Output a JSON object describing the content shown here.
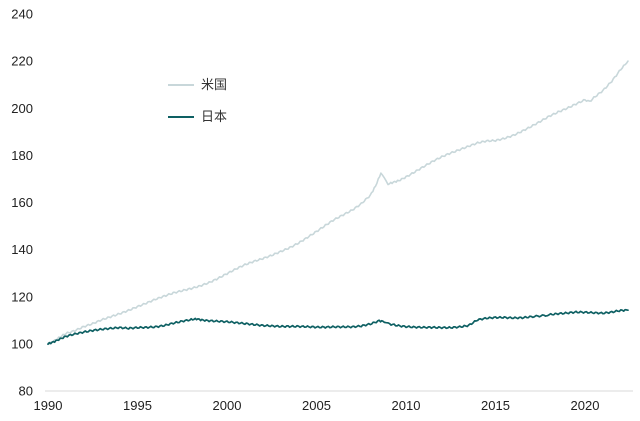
{
  "chart_data": {
    "type": "line",
    "description_visible_text_only": "",
    "x_axis": {
      "range": [
        1990,
        2022.6
      ],
      "ticks": [
        1990,
        1995,
        2000,
        2005,
        2010,
        2015,
        2020
      ]
    },
    "y_axis": {
      "range": [
        80,
        240
      ],
      "ticks": [
        80,
        100,
        120,
        140,
        160,
        180,
        200,
        220,
        240
      ]
    },
    "grid": false,
    "legend_position": "upper-left-inside",
    "legend": [
      {
        "label": "米国",
        "color": "#c8d7da"
      },
      {
        "label": "日本",
        "color": "#0e6063"
      }
    ],
    "series": [
      {
        "id": "us",
        "name": "米国",
        "color": "#c8d7da",
        "stroke_width": 1.6,
        "points": [
          [
            1990.0,
            100
          ],
          [
            1990.3,
            101
          ],
          [
            1990.6,
            102.6
          ],
          [
            1991.0,
            104.4
          ],
          [
            1991.5,
            105.6
          ],
          [
            1992.0,
            107.3
          ],
          [
            1992.5,
            108.6
          ],
          [
            1993.0,
            110.2
          ],
          [
            1993.5,
            111.5
          ],
          [
            1994.0,
            112.8
          ],
          [
            1994.5,
            114.2
          ],
          [
            1995.0,
            115.8
          ],
          [
            1995.5,
            117.3
          ],
          [
            1996.0,
            118.9
          ],
          [
            1996.5,
            120.3
          ],
          [
            1997.0,
            121.6
          ],
          [
            1997.5,
            122.6
          ],
          [
            1998.0,
            123.5
          ],
          [
            1998.5,
            124.6
          ],
          [
            1999.0,
            126.0
          ],
          [
            1999.5,
            127.8
          ],
          [
            2000.0,
            129.8
          ],
          [
            2000.5,
            131.8
          ],
          [
            2001.0,
            133.6
          ],
          [
            2001.5,
            135.0
          ],
          [
            2002.0,
            136.2
          ],
          [
            2002.5,
            137.6
          ],
          [
            2003.0,
            139.2
          ],
          [
            2003.5,
            140.8
          ],
          [
            2004.0,
            142.8
          ],
          [
            2004.5,
            145.2
          ],
          [
            2005.0,
            147.7
          ],
          [
            2005.5,
            150.3
          ],
          [
            2006.0,
            152.8
          ],
          [
            2006.5,
            154.8
          ],
          [
            2007.0,
            156.8
          ],
          [
            2007.5,
            159.5
          ],
          [
            2008.0,
            163.0
          ],
          [
            2008.3,
            167.0
          ],
          [
            2008.6,
            172.5
          ],
          [
            2008.8,
            170.0
          ],
          [
            2009.0,
            167.8
          ],
          [
            2009.3,
            168.6
          ],
          [
            2009.6,
            169.3
          ],
          [
            2010.0,
            170.8
          ],
          [
            2010.5,
            173.0
          ],
          [
            2011.0,
            175.3
          ],
          [
            2011.5,
            177.5
          ],
          [
            2012.0,
            179.4
          ],
          [
            2012.5,
            181.0
          ],
          [
            2013.0,
            182.4
          ],
          [
            2013.5,
            183.9
          ],
          [
            2014.0,
            185.3
          ],
          [
            2014.5,
            186.1
          ],
          [
            2015.0,
            186.3
          ],
          [
            2015.5,
            187.2
          ],
          [
            2016.0,
            188.5
          ],
          [
            2016.5,
            190.3
          ],
          [
            2017.0,
            192.3
          ],
          [
            2017.5,
            194.4
          ],
          [
            2018.0,
            196.6
          ],
          [
            2018.5,
            198.4
          ],
          [
            2019.0,
            200.0
          ],
          [
            2019.5,
            201.8
          ],
          [
            2020.0,
            203.6
          ],
          [
            2020.25,
            202.8
          ],
          [
            2020.5,
            204.5
          ],
          [
            2021.0,
            207.5
          ],
          [
            2021.5,
            211.5
          ],
          [
            2022.0,
            216.5
          ],
          [
            2022.4,
            220.0
          ]
        ]
      },
      {
        "id": "japan",
        "name": "日本",
        "color": "#0e6063",
        "stroke_width": 1.7,
        "points": [
          [
            1990.0,
            100
          ],
          [
            1990.3,
            100.8
          ],
          [
            1990.6,
            101.8
          ],
          [
            1991.0,
            103.2
          ],
          [
            1991.5,
            104.2
          ],
          [
            1992.0,
            105.0
          ],
          [
            1992.5,
            105.7
          ],
          [
            1993.0,
            106.2
          ],
          [
            1993.5,
            106.6
          ],
          [
            1994.0,
            106.9
          ],
          [
            1994.5,
            106.6
          ],
          [
            1995.0,
            106.9
          ],
          [
            1995.5,
            107.0
          ],
          [
            1996.0,
            107.2
          ],
          [
            1996.5,
            107.8
          ],
          [
            1997.0,
            108.8
          ],
          [
            1997.5,
            109.6
          ],
          [
            1998.0,
            110.3
          ],
          [
            1998.3,
            110.6
          ],
          [
            1998.6,
            110.1
          ],
          [
            1999.0,
            109.8
          ],
          [
            1999.5,
            109.6
          ],
          [
            2000.0,
            109.4
          ],
          [
            2000.5,
            109.0
          ],
          [
            2001.0,
            108.6
          ],
          [
            2001.5,
            108.2
          ],
          [
            2002.0,
            107.8
          ],
          [
            2002.5,
            107.6
          ],
          [
            2003.0,
            107.4
          ],
          [
            2003.5,
            107.4
          ],
          [
            2004.0,
            107.4
          ],
          [
            2004.5,
            107.3
          ],
          [
            2005.0,
            107.1
          ],
          [
            2005.5,
            107.1
          ],
          [
            2006.0,
            107.2
          ],
          [
            2006.5,
            107.2
          ],
          [
            2007.0,
            107.2
          ],
          [
            2007.5,
            107.6
          ],
          [
            2008.0,
            108.4
          ],
          [
            2008.5,
            109.8
          ],
          [
            2008.8,
            109.4
          ],
          [
            2009.0,
            108.6
          ],
          [
            2009.5,
            107.8
          ],
          [
            2010.0,
            107.3
          ],
          [
            2010.5,
            107.1
          ],
          [
            2011.0,
            107.0
          ],
          [
            2011.5,
            107.0
          ],
          [
            2012.0,
            106.9
          ],
          [
            2012.5,
            106.9
          ],
          [
            2013.0,
            107.2
          ],
          [
            2013.5,
            107.8
          ],
          [
            2014.0,
            110.2
          ],
          [
            2014.5,
            110.9
          ],
          [
            2015.0,
            111.2
          ],
          [
            2015.5,
            111.2
          ],
          [
            2016.0,
            111.0
          ],
          [
            2016.5,
            111.1
          ],
          [
            2017.0,
            111.5
          ],
          [
            2017.8,
            112.1
          ],
          [
            2018.0,
            112.4
          ],
          [
            2018.5,
            112.8
          ],
          [
            2019.0,
            113.1
          ],
          [
            2019.5,
            113.5
          ],
          [
            2020.0,
            113.4
          ],
          [
            2020.5,
            113.2
          ],
          [
            2021.0,
            113.0
          ],
          [
            2021.5,
            113.5
          ],
          [
            2022.0,
            114.2
          ],
          [
            2022.4,
            114.3
          ]
        ]
      }
    ]
  },
  "colors": {
    "axis_line": "#d9d9d9",
    "tick_text": "#222222",
    "background": "#ffffff"
  }
}
